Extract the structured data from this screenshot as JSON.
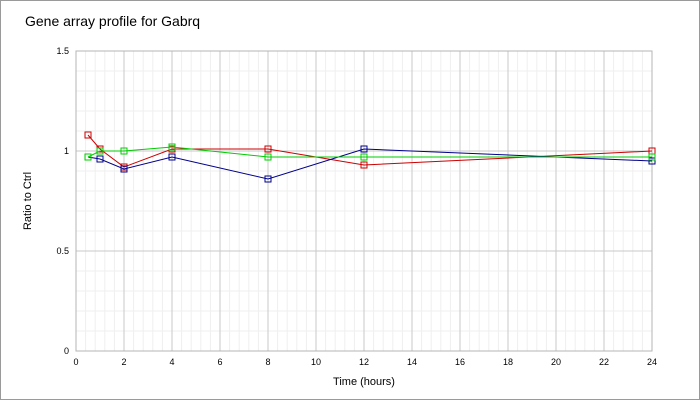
{
  "chart_data": {
    "type": "line",
    "title": "Gene array profile for Gabrq",
    "xlabel": "Time (hours)",
    "ylabel": "Ratio to Ctrl",
    "xlim": [
      0,
      24
    ],
    "ylim": [
      0,
      1.5
    ],
    "xticks": [
      0,
      2,
      4,
      6,
      8,
      10,
      12,
      14,
      16,
      18,
      20,
      22,
      24
    ],
    "yticks": [
      0,
      0.5,
      1,
      1.5
    ],
    "xtick_labels": [
      "0",
      "2",
      "4",
      "6",
      "8",
      "10",
      "12",
      "14",
      "16",
      "18",
      "20",
      "22",
      "24"
    ],
    "ytick_labels": [
      "0",
      "0.5",
      "1",
      "1.5"
    ],
    "grid": true,
    "legend": "none",
    "series": [
      {
        "color": "#cc0000",
        "marker": "square",
        "x": [
          0.5,
          1,
          2,
          4,
          8,
          12,
          24
        ],
        "y": [
          1.08,
          1.01,
          0.92,
          1.01,
          1.01,
          0.93,
          1.0
        ]
      },
      {
        "color": "#00008b",
        "marker": "square",
        "x": [
          0.5,
          1,
          2,
          4,
          8,
          12,
          24
        ],
        "y": [
          0.97,
          0.96,
          0.91,
          0.97,
          0.86,
          1.01,
          0.95
        ]
      },
      {
        "color": "#00cc00",
        "marker": "square",
        "x": [
          0.5,
          1,
          2,
          4,
          8,
          12,
          24
        ],
        "y": [
          0.97,
          1.0,
          1.0,
          1.02,
          0.97,
          0.97,
          0.97
        ]
      }
    ]
  }
}
